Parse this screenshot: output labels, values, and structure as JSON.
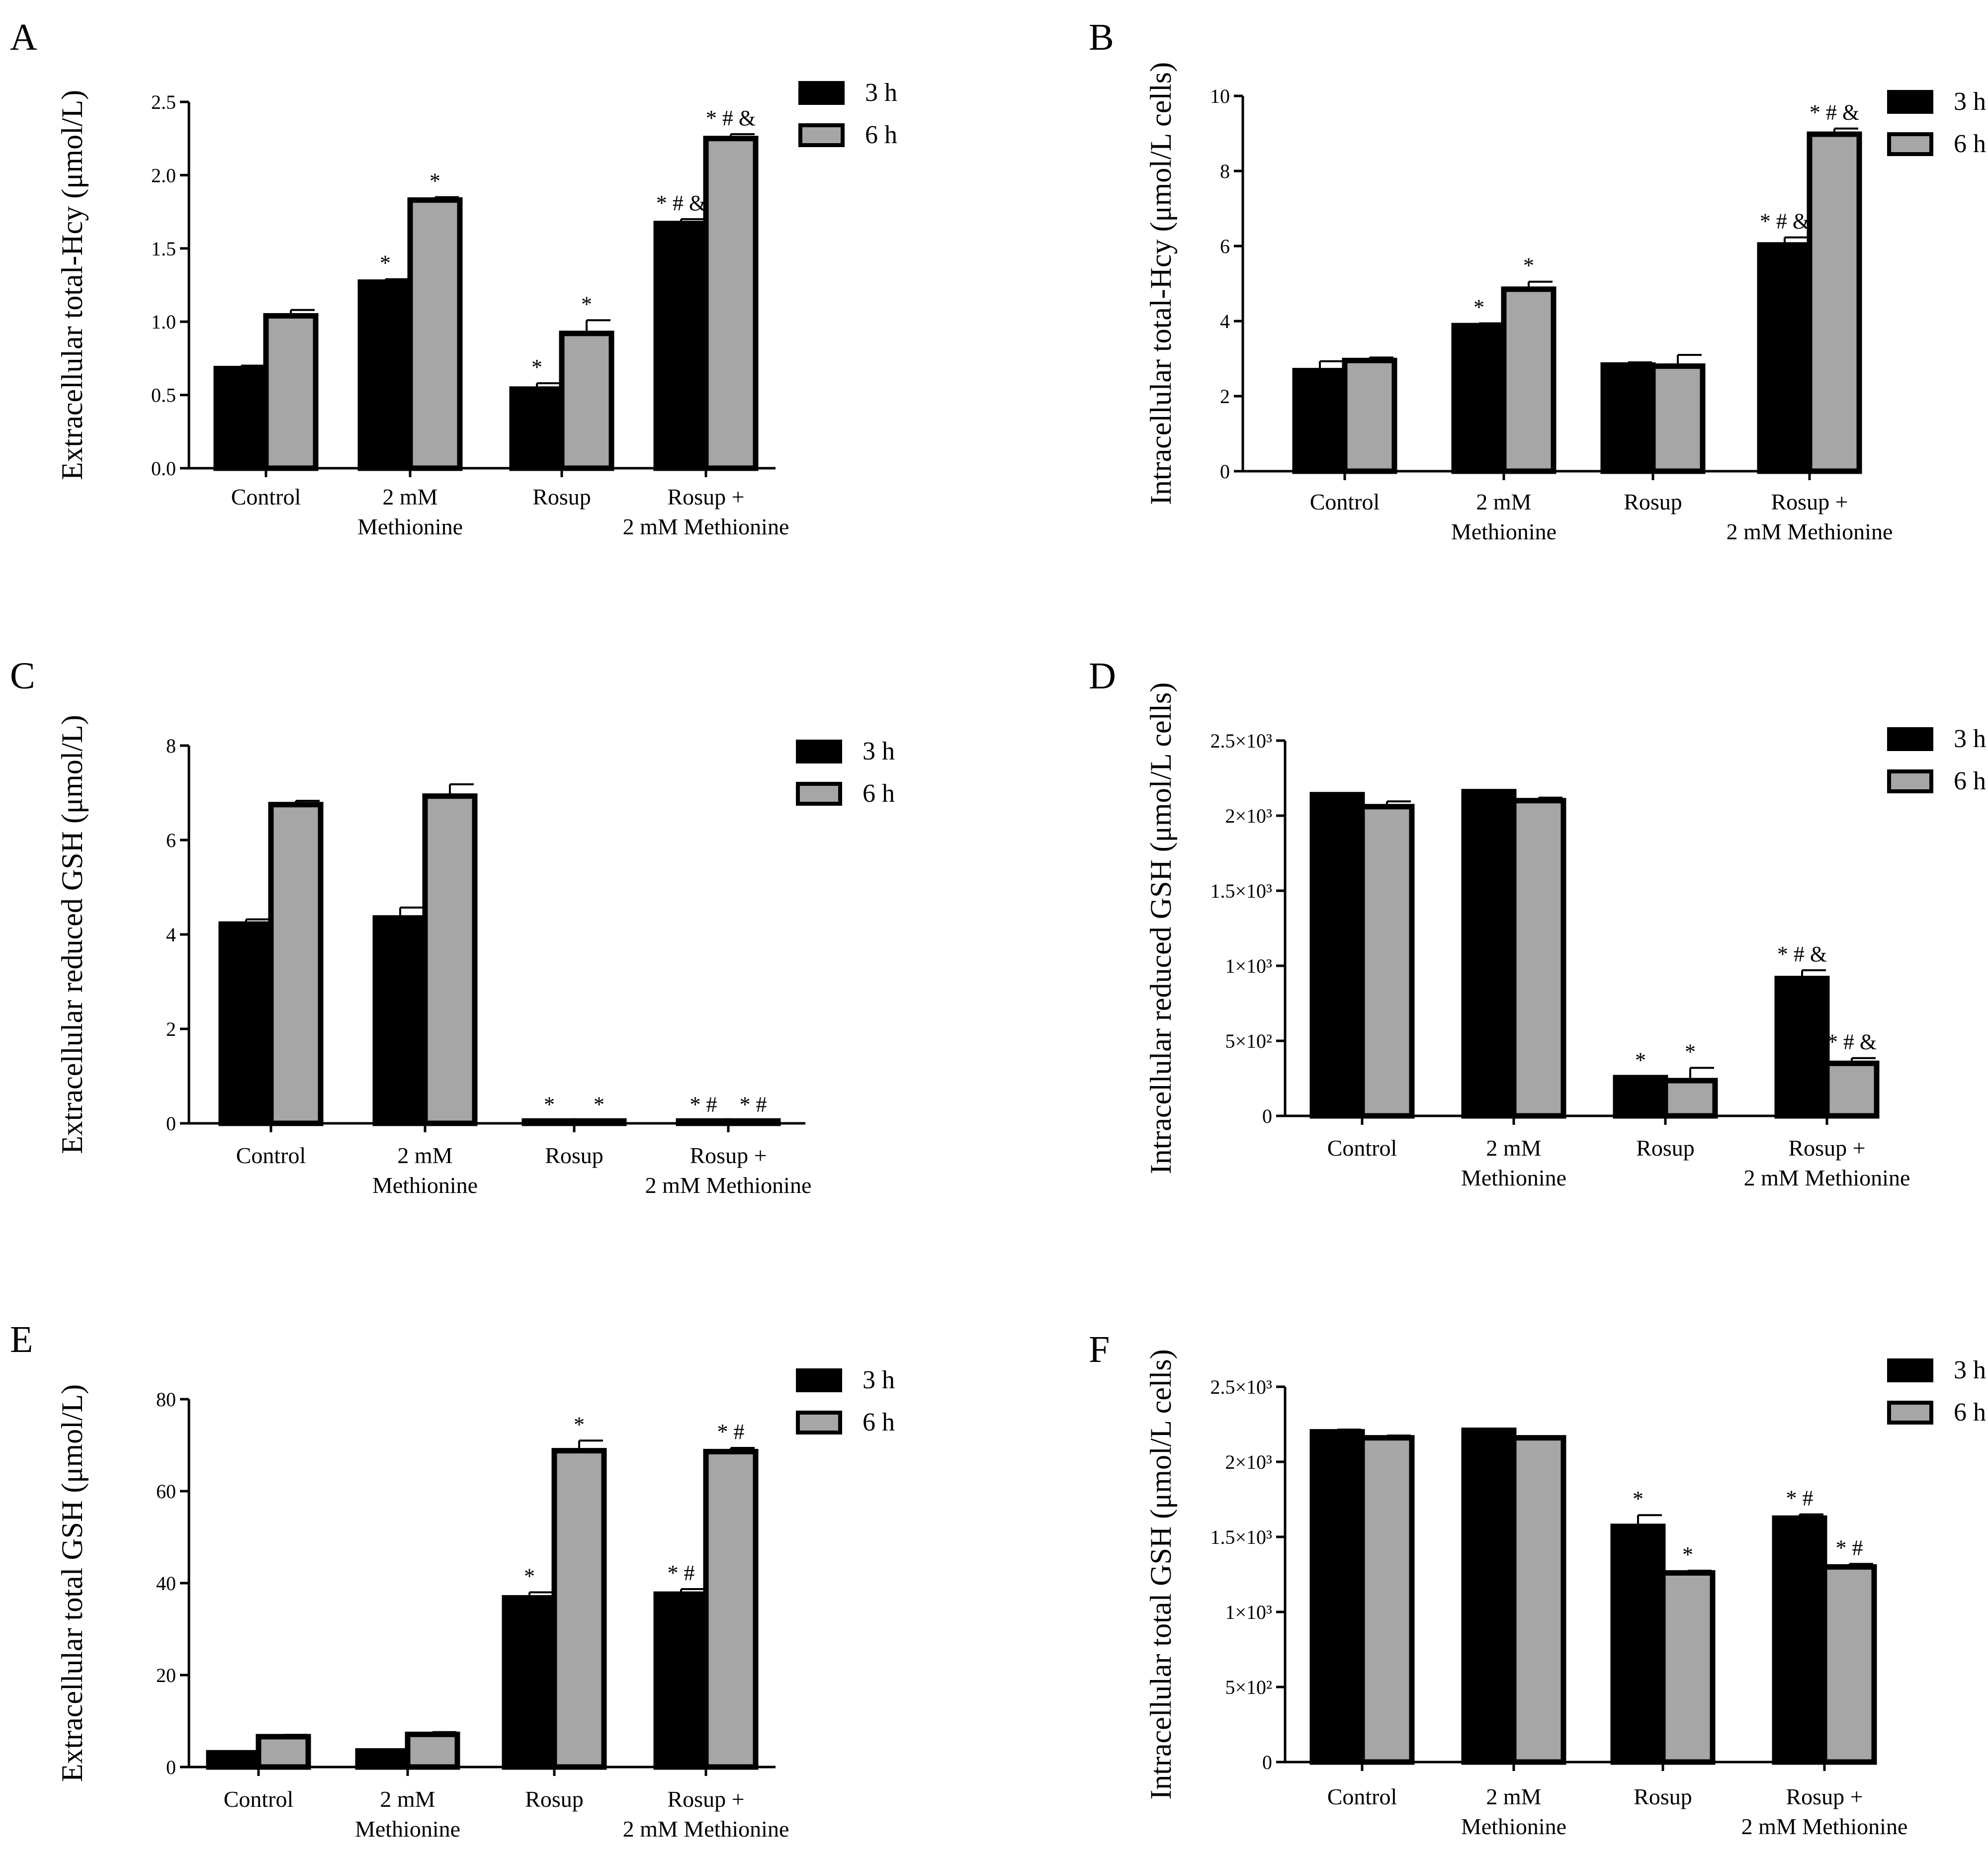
{
  "legend": {
    "series": [
      "3 h",
      "6 h"
    ]
  },
  "colors": {
    "s3h": "#000000",
    "s6h": "#a6a6a6"
  },
  "categories": [
    [
      "Control"
    ],
    [
      "2 mM",
      "Methionine"
    ],
    [
      "Rosup"
    ],
    [
      "Rosup +",
      "2 mM Methionine"
    ]
  ],
  "chart_data": [
    {
      "panel": "A",
      "type": "bar",
      "ylabel": "Extracellular total-Hcy (μmol/L)",
      "ylim": [
        0,
        2.5
      ],
      "yticks": [
        "0.0",
        "0.5",
        "1.0",
        "1.5",
        "2.0",
        "2.5"
      ],
      "categories": [
        "Control",
        "2 mM Methionine",
        "Rosup",
        "Rosup + 2 mM Methionine"
      ],
      "series": [
        {
          "name": "3 h",
          "values": [
            0.68,
            1.27,
            0.54,
            1.67
          ],
          "errors": [
            0.02,
            0.02,
            0.04,
            0.03
          ],
          "marks": [
            "",
            "*",
            "*",
            "* # &"
          ]
        },
        {
          "name": "6 h",
          "values": [
            1.04,
            1.83,
            0.92,
            2.25
          ],
          "errors": [
            0.04,
            0.02,
            0.09,
            0.03
          ],
          "marks": [
            "",
            "*",
            "*",
            "* # &"
          ]
        }
      ]
    },
    {
      "panel": "B",
      "type": "bar",
      "ylabel": "Intracellular total-Hcy (μmol/L cells)",
      "ylim": [
        0,
        10
      ],
      "yticks": [
        "0",
        "2",
        "4",
        "6",
        "8",
        "10"
      ],
      "categories": [
        "Control",
        "2 mM Methionine",
        "Rosup",
        "Rosup + 2 mM Methionine"
      ],
      "series": [
        {
          "name": "3 h",
          "values": [
            2.68,
            3.88,
            2.83,
            6.03
          ],
          "errors": [
            0.25,
            0.06,
            0.07,
            0.2
          ],
          "marks": [
            "",
            "*",
            "",
            "* # &"
          ]
        },
        {
          "name": "6 h",
          "values": [
            2.95,
            4.85,
            2.8,
            8.98
          ],
          "errors": [
            0.08,
            0.2,
            0.3,
            0.15
          ],
          "marks": [
            "",
            "*",
            "",
            "* # &"
          ]
        }
      ]
    },
    {
      "panel": "C",
      "type": "bar",
      "ylabel": "Extracellular reduced GSH (μmol/L)",
      "ylim": [
        0,
        8
      ],
      "yticks": [
        "0",
        "2",
        "4",
        "6",
        "8"
      ],
      "categories": [
        "Control",
        "2 mM Methionine",
        "Rosup",
        "Rosup + 2 mM Methionine"
      ],
      "series": [
        {
          "name": "3 h",
          "values": [
            4.22,
            4.35,
            0.05,
            0.05
          ],
          "errors": [
            0.1,
            0.22,
            0.01,
            0.01
          ],
          "marks": [
            "",
            "",
            "*",
            "* #"
          ]
        },
        {
          "name": "6 h",
          "values": [
            6.75,
            6.93,
            0.05,
            0.05
          ],
          "errors": [
            0.08,
            0.25,
            0.01,
            0.01
          ],
          "marks": [
            "",
            "",
            "*",
            "* #"
          ]
        }
      ]
    },
    {
      "panel": "D",
      "type": "bar",
      "ylabel": "Intracellular reduced GSH (μmol/L cells)",
      "ylim": [
        0,
        2500
      ],
      "yticks": [
        "0",
        "5×10²",
        "1×10³",
        "1.5×10³",
        "2×10³",
        "2.5×10³"
      ],
      "categories": [
        "Control",
        "2 mM Methionine",
        "Rosup",
        "Rosup + 2 mM Methionine"
      ],
      "series": [
        {
          "name": "3 h",
          "values": [
            2140,
            2160,
            255,
            915
          ],
          "errors": [
            10,
            10,
            8,
            55
          ],
          "marks": [
            "",
            "",
            "*",
            "* # &"
          ]
        },
        {
          "name": "6 h",
          "values": [
            2060,
            2100,
            235,
            350
          ],
          "errors": [
            35,
            20,
            85,
            35
          ],
          "marks": [
            "",
            "",
            "*",
            "* # &"
          ]
        }
      ]
    },
    {
      "panel": "E",
      "type": "bar",
      "ylabel": "Extracellular total GSH (μmol/L)",
      "ylim": [
        0,
        80
      ],
      "yticks": [
        "0",
        "20",
        "40",
        "60",
        "80"
      ],
      "categories": [
        "Control",
        "2 mM Methionine",
        "Rosup",
        "Rosup + 2 mM Methionine"
      ],
      "series": [
        {
          "name": "3 h",
          "values": [
            3.1,
            3.5,
            36.8,
            37.6
          ],
          "errors": [
            0.3,
            0.3,
            1.2,
            1.1
          ],
          "marks": [
            "",
            "",
            "*",
            "* #"
          ]
        },
        {
          "name": "6 h",
          "values": [
            6.6,
            7.1,
            68.8,
            68.6
          ],
          "errors": [
            0.4,
            0.5,
            2.2,
            0.8
          ],
          "marks": [
            "",
            "",
            "*",
            "* #"
          ]
        }
      ]
    },
    {
      "panel": "F",
      "type": "bar",
      "ylabel": "Intracellular total GSH (μmol/L cells)",
      "ylim": [
        0,
        2500
      ],
      "yticks": [
        "0",
        "5×10²",
        "1×10³",
        "1.5×10³",
        "2×10³",
        "2.5×10³"
      ],
      "categories": [
        "Control",
        "2 mM Methionine",
        "Rosup",
        "Rosup + 2 mM Methionine"
      ],
      "series": [
        {
          "name": "3 h",
          "values": [
            2200,
            2210,
            1570,
            1625
          ],
          "errors": [
            15,
            10,
            75,
            25
          ],
          "marks": [
            "",
            "",
            "*",
            "* #"
          ]
        },
        {
          "name": "6 h",
          "values": [
            2160,
            2160,
            1260,
            1300
          ],
          "errors": [
            15,
            10,
            15,
            20
          ],
          "marks": [
            "",
            "",
            "*",
            "* #"
          ]
        }
      ]
    }
  ]
}
